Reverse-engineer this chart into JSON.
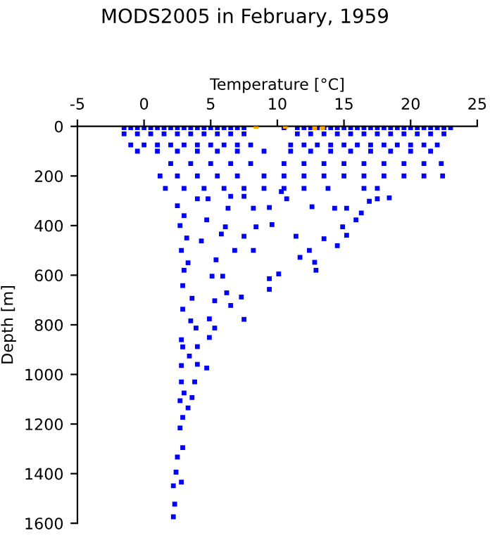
{
  "chart_data": {
    "type": "scatter",
    "title": "MODS2005 in February, 1959",
    "xlabel": "Temperature [°C]",
    "ylabel": "Depth [m]",
    "xlim": [
      -5,
      25
    ],
    "xticks": [
      -5,
      0,
      5,
      10,
      15,
      20,
      25
    ],
    "ylim": [
      1600,
      0
    ],
    "yticks": [
      0,
      200,
      400,
      600,
      800,
      1000,
      1200,
      1400,
      1600
    ],
    "grid": false,
    "marker": "square",
    "series": [
      {
        "color": "#0000ff",
        "x": [
          -1.5,
          -1,
          -0.5,
          0,
          0.5,
          1,
          1.5,
          2,
          2.5,
          3,
          3.5,
          4,
          4.5,
          5,
          5.5,
          6,
          6.5,
          7,
          7.5,
          10.5,
          11.5,
          12,
          12.5,
          13,
          13.5,
          14,
          14.5,
          15,
          15.5,
          16,
          16.5,
          17,
          17.5,
          18,
          18.5,
          19,
          19.5,
          20,
          20.5,
          21,
          21.5,
          22,
          22.5,
          23,
          -1.5,
          -0.5,
          0.5,
          1.5,
          2.5,
          3.5,
          4.5,
          5.5,
          6.5,
          7.5,
          11.5,
          12.5,
          13.5,
          14.5,
          15.5,
          16.5,
          17.5,
          18.5,
          19.5,
          20.5,
          21.5,
          22.5,
          -1,
          0,
          1,
          2,
          3,
          4,
          5,
          6,
          7,
          8,
          11,
          12,
          13,
          14,
          15,
          16,
          17,
          18,
          19,
          20,
          21,
          22,
          -0.5,
          1,
          2.5,
          4,
          5.5,
          7,
          9,
          11,
          12.5,
          14,
          15.5,
          17,
          18.5,
          20,
          21.5,
          2,
          3.5,
          5,
          6.5,
          8,
          10.5,
          12,
          13.5,
          15,
          16.5,
          18,
          19.5,
          21,
          22.3,
          1.2,
          2.5,
          4,
          5.5,
          7,
          9,
          10.5,
          12,
          13.5,
          15,
          16.5,
          18,
          19.5,
          21,
          22.4,
          1.6,
          3,
          4.5,
          6,
          7.5,
          9,
          10.5,
          12,
          13.8,
          16.5,
          17.5,
          6.3,
          8.2,
          9.4,
          10.7,
          12.6,
          14.3,
          15.2,
          16.3,
          15.9,
          14.9,
          15.2,
          14.5,
          13.5,
          12.4,
          11.4,
          11.7,
          12.8,
          9.6,
          8.4,
          7.5,
          6.1,
          5.8,
          4.3,
          6.8,
          8.2,
          5.4,
          4.7,
          4.0,
          4.8,
          6.5,
          7.5,
          10.3,
          18.4,
          17.5,
          16.9,
          2.5,
          3.0,
          2.7,
          3.2,
          2.8,
          3.3,
          3.0,
          2.2,
          2.3,
          2.2,
          2.8,
          2.4,
          2.5,
          2.9,
          2.7,
          2.9,
          3.3,
          2.7,
          3.6,
          3.0,
          2.8,
          3.8,
          2.8,
          4.7,
          4.0,
          3.4,
          2.9,
          4.0,
          2.8,
          4.9,
          5.3,
          3.5,
          3.9,
          7.5,
          4.9,
          6.5,
          7.3,
          5.3,
          6.2,
          3.6,
          2.9,
          9.4,
          9.4,
          10.1,
          12.9,
          5.9,
          5.1,
          2.9
        ],
        "values": [
          5,
          5,
          5,
          5,
          5,
          5,
          5,
          5,
          5,
          5,
          5,
          5,
          5,
          5,
          5,
          5,
          5,
          5,
          5,
          5,
          5,
          5,
          5,
          5,
          5,
          5,
          5,
          5,
          5,
          5,
          5,
          5,
          5,
          5,
          5,
          5,
          5,
          5,
          5,
          5,
          5,
          5,
          5,
          5,
          30,
          30,
          30,
          30,
          30,
          30,
          30,
          30,
          30,
          30,
          30,
          30,
          30,
          30,
          30,
          30,
          30,
          30,
          30,
          30,
          30,
          30,
          75,
          75,
          75,
          75,
          75,
          75,
          75,
          75,
          75,
          75,
          75,
          75,
          75,
          75,
          75,
          75,
          75,
          75,
          75,
          75,
          75,
          75,
          100,
          100,
          100,
          100,
          100,
          100,
          100,
          100,
          100,
          100,
          100,
          100,
          100,
          100,
          100,
          150,
          150,
          150,
          150,
          150,
          150,
          150,
          150,
          150,
          150,
          150,
          150,
          150,
          150,
          200,
          200,
          200,
          200,
          200,
          200,
          200,
          200,
          200,
          200,
          200,
          200,
          200,
          200,
          200,
          250,
          250,
          250,
          250,
          250,
          250,
          250,
          250,
          250,
          250,
          250,
          330,
          330,
          327,
          292,
          324,
          330,
          330,
          349,
          377,
          405,
          439,
          481,
          453,
          500,
          443,
          528,
          548,
          396,
          405,
          443,
          405,
          434,
          462,
          500,
          500,
          538,
          377,
          292,
          292,
          282,
          282,
          263,
          288,
          292,
          302,
          320,
          360,
          400,
          450,
          500,
          550,
          580,
          1574,
          1523,
          1449,
          1434,
          1394,
          1333,
          1295,
          1216,
          1173,
          1135,
          1106,
          1093,
          1075,
          1030,
          1030,
          964,
          974,
          959,
          926,
          889,
          888,
          860,
          851,
          813,
          784,
          813,
          778,
          776,
          722,
          688,
          703,
          671,
          693,
          737,
          614,
          657,
          595,
          580,
          604,
          604,
          642
        ]
      },
      {
        "color": "#ffa500",
        "x": [
          8.4,
          10.6,
          12.8,
          13.4
        ],
        "values": [
          0,
          0,
          5,
          5
        ]
      }
    ]
  }
}
